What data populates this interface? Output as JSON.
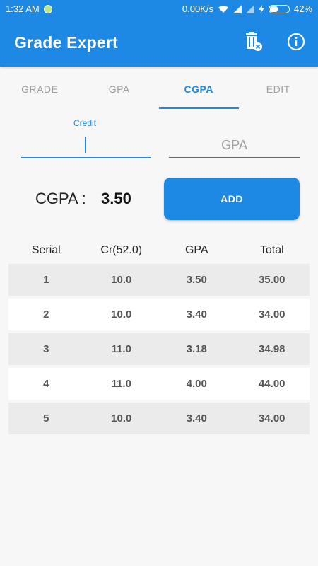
{
  "status_bar": {
    "time": "1:32 AM",
    "network_speed": "0.00K/s",
    "battery_percent": "42%",
    "battery_level": 0.42
  },
  "app_bar": {
    "title": "Grade Expert",
    "icons": [
      "delete-all-icon",
      "info-icon"
    ]
  },
  "tabs": [
    {
      "label": "GRADE",
      "active": false
    },
    {
      "label": "GPA",
      "active": false
    },
    {
      "label": "CGPA",
      "active": true
    },
    {
      "label": "EDIT",
      "active": false
    }
  ],
  "form": {
    "credit_label": "Credit",
    "credit_value": "",
    "gpa_placeholder": "GPA",
    "gpa_value": ""
  },
  "result": {
    "label": "CGPA :",
    "value": "3.50"
  },
  "add_button_label": "ADD",
  "table": {
    "headers": [
      "Serial",
      "Cr(52.0)",
      "GPA",
      "Total"
    ],
    "rows": [
      [
        "1",
        "10.0",
        "3.50",
        "35.00"
      ],
      [
        "2",
        "10.0",
        "3.40",
        "34.00"
      ],
      [
        "3",
        "11.0",
        "3.18",
        "34.98"
      ],
      [
        "4",
        "11.0",
        "4.00",
        "44.00"
      ],
      [
        "5",
        "10.0",
        "3.40",
        "34.00"
      ]
    ]
  },
  "colors": {
    "primary": "#1e88e5",
    "row_shade": "#ebebeb"
  }
}
